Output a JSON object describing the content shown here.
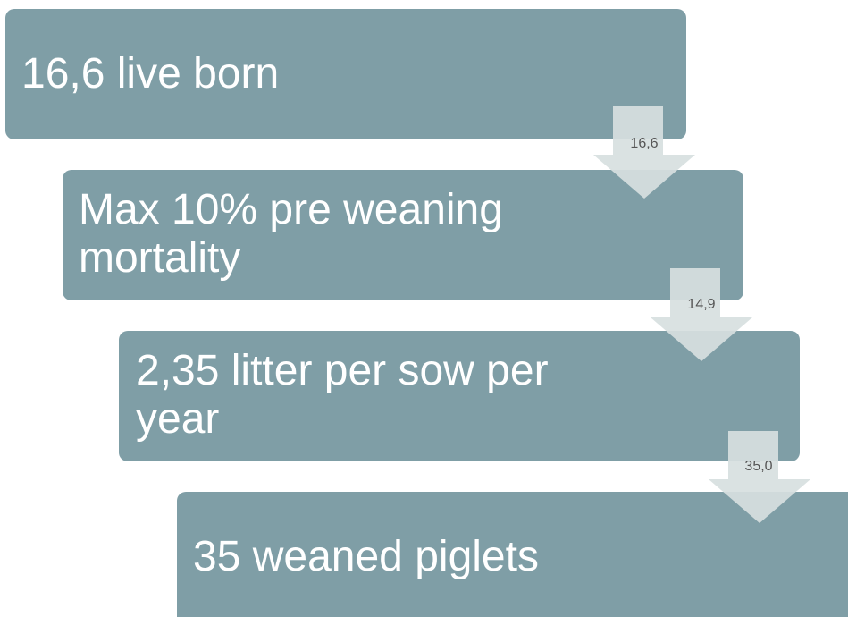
{
  "steps": [
    {
      "label": "16,6 live born"
    },
    {
      "label": "Max 10% pre weaning mortality"
    },
    {
      "label": "2,35 litter per sow per year"
    },
    {
      "label": "35 weaned piglets"
    }
  ],
  "arrows": [
    {
      "label": "16,6"
    },
    {
      "label": "14,9"
    },
    {
      "label": "35,0"
    }
  ]
}
